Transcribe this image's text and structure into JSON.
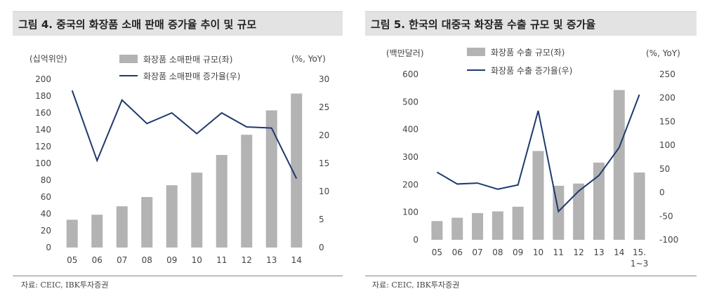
{
  "chart_data": [
    {
      "type": "bar",
      "title": "그림 4. 중국의 화장품 소매 판매 증가율 추이 및 규모",
      "source": "자료: CEIC, IBK투자증권",
      "left_axis_unit": "(십억위안)",
      "right_axis_unit": "(%, YoY)",
      "categories": [
        "05",
        "06",
        "07",
        "08",
        "09",
        "10",
        "11",
        "12",
        "13",
        "14"
      ],
      "left_ylim": [
        0,
        200
      ],
      "left_ticks": [
        "0",
        "20",
        "40",
        "60",
        "80",
        "100",
        "120",
        "140",
        "160",
        "180",
        "200"
      ],
      "right_ylim": [
        0,
        30
      ],
      "right_ticks": [
        "0",
        "5",
        "10",
        "15",
        "20",
        "25",
        "30"
      ],
      "legend_position": "top-center",
      "series": [
        {
          "name": "화장품 소매판매 규모(좌)",
          "type": "bar",
          "axis": "left",
          "color": "#b3b3b3",
          "values": [
            33,
            39,
            49,
            60,
            74,
            89,
            110,
            134,
            163,
            183
          ]
        },
        {
          "name": "화장품 소매판매 증가율(우)",
          "type": "line",
          "axis": "right",
          "color": "#1f3a6e",
          "values": [
            28.0,
            15.5,
            26.3,
            22.1,
            24.0,
            20.3,
            24.0,
            21.5,
            21.3,
            12.3
          ]
        }
      ]
    },
    {
      "type": "bar",
      "title": "그림 5. 한국의 대중국 화장품 수출 규모 및 증가율",
      "source": "자료: CEIC, IBK투자증권",
      "left_axis_unit": "(백만달러)",
      "right_axis_unit": "(%, YoY)",
      "categories": [
        "05",
        "06",
        "07",
        "08",
        "09",
        "10",
        "11",
        "12",
        "13",
        "14",
        "15.\n1~3"
      ],
      "left_ylim": [
        0,
        600
      ],
      "left_ticks": [
        "0",
        "100",
        "200",
        "300",
        "400",
        "500",
        "600"
      ],
      "right_ylim": [
        -100,
        250
      ],
      "right_ticks": [
        "-100",
        "-50",
        "0",
        "50",
        "100",
        "150",
        "200",
        "250"
      ],
      "legend_position": "top-center",
      "series": [
        {
          "name": "화장품 수출 규모(좌)",
          "type": "bar",
          "axis": "left",
          "color": "#b3b3b3",
          "values": [
            68,
            80,
            97,
            103,
            120,
            322,
            196,
            204,
            280,
            543,
            244
          ]
        },
        {
          "name": "화장품 수출 증가율(우)",
          "type": "line",
          "axis": "right",
          "color": "#1f3a6e",
          "values": [
            43,
            18,
            20,
            7,
            16,
            173,
            -40,
            3,
            36,
            95,
            207
          ]
        }
      ]
    }
  ]
}
